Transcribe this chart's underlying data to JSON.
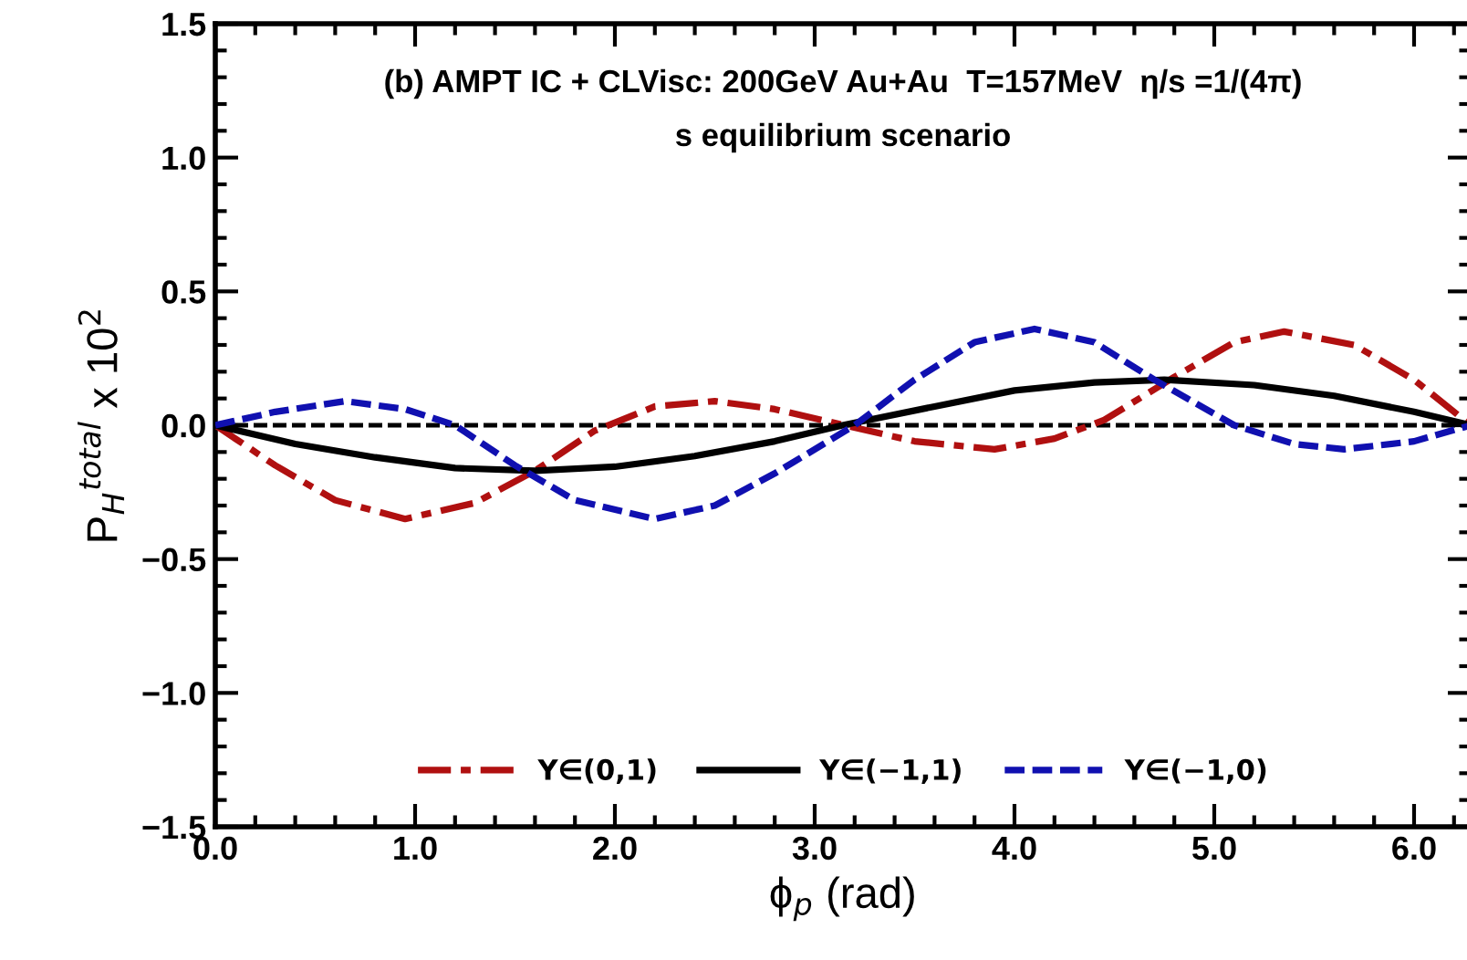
{
  "chart_data": {
    "type": "line",
    "title": "(b) AMPT IC + CLVisc: 200GeV Au+Au  T=157MeV  η/s =1/(4π)",
    "subtitle": "s equilibrium scenario",
    "xlabel": "ϕ$_{p}$ (rad)",
    "ylabel": "P$_{H}$$^{total}$ x 10$^{2}$",
    "xlim": [
      0,
      6.2832
    ],
    "ylim": [
      -1.5,
      1.5
    ],
    "xticks": [
      {
        "value": 0,
        "label": "0.0"
      },
      {
        "value": 1,
        "label": "1.0"
      },
      {
        "value": 2,
        "label": "2.0"
      },
      {
        "value": 3,
        "label": "3.0"
      },
      {
        "value": 4,
        "label": "4.0"
      },
      {
        "value": 5,
        "label": "5.0"
      },
      {
        "value": 6,
        "label": "6.0"
      }
    ],
    "yticks": [
      {
        "value": -1.5,
        "label": "−1.5"
      },
      {
        "value": -1,
        "label": "−1.0"
      },
      {
        "value": -0.5,
        "label": "−0.5"
      },
      {
        "value": 0,
        "label": "0.0"
      },
      {
        "value": 0.5,
        "label": "0.5"
      },
      {
        "value": 1,
        "label": "1.0"
      },
      {
        "value": 1.5,
        "label": "1.5"
      }
    ],
    "grid": false,
    "legend": "bottom",
    "marker": "none",
    "ref_lines": [
      {
        "axis": "y",
        "value": 0,
        "color": "#000000",
        "line_style": "dashed"
      }
    ],
    "series": [
      {
        "name": "Y∈(0,1)",
        "color": "#b01010",
        "line_style": "dashdot",
        "x": [
          0,
          0.3,
          0.6,
          0.95,
          1.3,
          1.6,
          1.9,
          2.2,
          2.5,
          2.8,
          3.15,
          3.5,
          3.9,
          4.2,
          4.45,
          4.8,
          5.1,
          5.35,
          5.7,
          6.0,
          6.2832
        ],
        "values": [
          0,
          -0.15,
          -0.28,
          -0.35,
          -0.29,
          -0.17,
          -0.02,
          0.07,
          0.09,
          0.06,
          0,
          -0.06,
          -0.09,
          -0.05,
          0.02,
          0.18,
          0.31,
          0.35,
          0.3,
          0.17,
          0
        ]
      },
      {
        "name": "Y∈(−1,1)",
        "color": "#000000",
        "line_style": "solid",
        "x": [
          0,
          0.4,
          0.8,
          1.2,
          1.6,
          2.0,
          2.4,
          2.8,
          3.14,
          3.6,
          4.0,
          4.4,
          4.75,
          5.2,
          5.6,
          6.0,
          6.2832
        ],
        "values": [
          0,
          -0.07,
          -0.12,
          -0.16,
          -0.17,
          -0.155,
          -0.115,
          -0.06,
          0,
          0.07,
          0.13,
          0.16,
          0.17,
          0.15,
          0.11,
          0.05,
          0
        ]
      },
      {
        "name": "Y∈(−1,0)",
        "color": "#1010b0",
        "line_style": "dashed",
        "x": [
          0,
          0.3,
          0.65,
          0.95,
          1.2,
          1.5,
          1.8,
          2.2,
          2.5,
          2.8,
          3.2,
          3.5,
          3.8,
          4.1,
          4.4,
          4.7,
          5.1,
          5.4,
          5.65,
          6.0,
          6.2832
        ],
        "values": [
          0,
          0.05,
          0.09,
          0.06,
          0,
          -0.15,
          -0.28,
          -0.35,
          -0.3,
          -0.18,
          0,
          0.17,
          0.31,
          0.36,
          0.31,
          0.17,
          0,
          -0.07,
          -0.09,
          -0.06,
          0
        ]
      }
    ]
  }
}
